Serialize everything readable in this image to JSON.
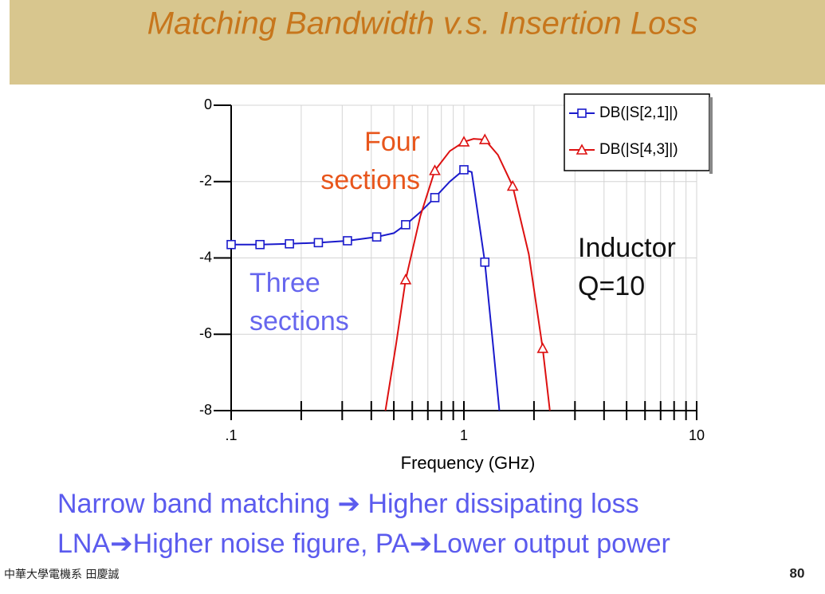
{
  "slide": {
    "title": "Matching Bandwidth v.s. Insertion Loss",
    "bullets": [
      "Narrow band matching ➔ Higher dissipating loss",
      "LNA➔Higher noise figure, PA➔Lower output power"
    ],
    "footer": "中華大學電機系 田慶誠",
    "page_number": "80"
  },
  "chart_data": {
    "type": "line",
    "x_label": "Frequency (GHz)",
    "xscale": "log",
    "xlim": [
      0.1,
      10
    ],
    "xticks": [
      {
        "value": 0.1,
        "label": ".1"
      },
      1,
      10
    ],
    "xminor_ticks": [
      0.2,
      0.3,
      0.4,
      0.5,
      0.6,
      0.7,
      0.8,
      0.9,
      2,
      3,
      4,
      5,
      6,
      7,
      8,
      9
    ],
    "ylim": [
      -8,
      0
    ],
    "yticks": [
      0,
      -2,
      -4,
      -6,
      -8
    ],
    "grid": true,
    "legend": "top-right",
    "series": [
      {
        "name": "DB(|S[2,1]|)",
        "color": "#1a1acc",
        "marker": "square",
        "x": [
          0.1,
          0.133,
          0.178,
          0.237,
          0.316,
          0.422,
          0.562,
          0.75,
          1.0,
          1.23
        ],
        "values": [
          -3.65,
          -3.65,
          -3.63,
          -3.6,
          -3.55,
          -3.45,
          -3.13,
          -2.42,
          -1.69,
          -4.11
        ],
        "curve_x": [
          0.1,
          0.133,
          0.178,
          0.237,
          0.316,
          0.422,
          0.5,
          0.562,
          0.65,
          0.75,
          0.87,
          1.0,
          1.08,
          1.12,
          1.23,
          1.33,
          1.42
        ],
        "curve_values": [
          -3.65,
          -3.65,
          -3.63,
          -3.6,
          -3.55,
          -3.45,
          -3.35,
          -3.13,
          -2.8,
          -2.42,
          -2.0,
          -1.69,
          -1.75,
          -2.4,
          -4.11,
          -6.2,
          -8
        ]
      },
      {
        "name": "DB(|S[4,3]|)",
        "color": "#dd1111",
        "marker": "triangle",
        "x": [
          0.562,
          0.75,
          1.0,
          1.23,
          1.62,
          2.18
        ],
        "values": [
          -4.57,
          -1.71,
          -0.96,
          -0.9,
          -2.12,
          -6.37
        ],
        "curve_x": [
          0.46,
          0.51,
          0.562,
          0.65,
          0.75,
          0.87,
          1.0,
          1.1,
          1.23,
          1.4,
          1.62,
          1.9,
          2.18,
          2.34
        ],
        "curve_values": [
          -8,
          -6.3,
          -4.57,
          -2.9,
          -1.71,
          -1.2,
          -0.96,
          -0.88,
          -0.9,
          -1.3,
          -2.12,
          -3.9,
          -6.37,
          -8
        ]
      }
    ],
    "annotations": [
      {
        "lines": [
          "Four",
          "sections"
        ],
        "color": "#e8561c"
      },
      {
        "lines": [
          "Three",
          "sections"
        ],
        "color": "#6666ee"
      },
      {
        "lines": [
          "Inductor",
          "Q=10"
        ],
        "color": "#111111"
      }
    ]
  }
}
